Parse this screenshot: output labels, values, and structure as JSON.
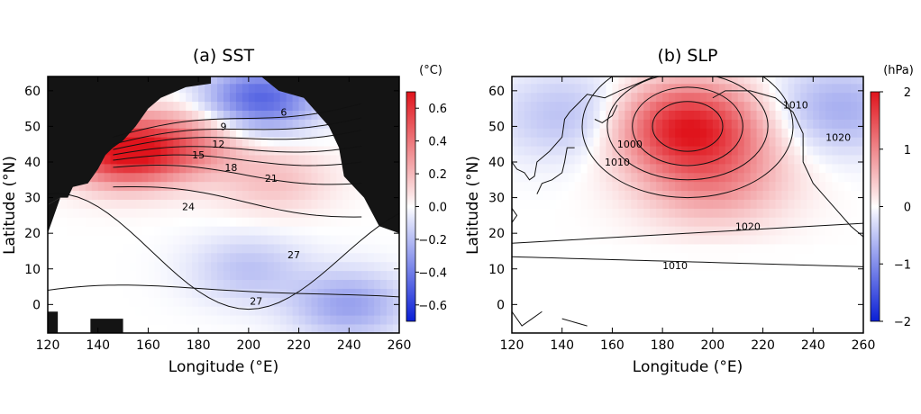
{
  "chart_data": [
    {
      "type": "heatmap",
      "title": "(a) SST",
      "xlabel": "Longitude (°E)",
      "ylabel": "Latitude (°N)",
      "xlim": [
        120,
        260
      ],
      "ylim": [
        -8,
        64
      ],
      "x_ticks": [
        "120",
        "140",
        "160",
        "180",
        "200",
        "220",
        "240",
        "260"
      ],
      "y_ticks": [
        "0",
        "10",
        "20",
        "30",
        "40",
        "50",
        "60"
      ],
      "colorbar": {
        "unit": "(°C)",
        "range": [
          -0.7,
          0.7
        ],
        "ticks": [
          "0.6",
          "0.4",
          "0.2",
          "0.0",
          "−0.2",
          "−0.4",
          "−0.6"
        ],
        "colors": {
          "negative": "#0a1fd6",
          "zero": "#ffffff",
          "positive": "#e0141c"
        }
      },
      "land_color": "#141414",
      "contour_labels": [
        "6",
        "9",
        "12",
        "15",
        "18",
        "21",
        "24",
        "27",
        "27"
      ],
      "anomaly_centers": [
        {
          "lon": 150,
          "lat": 43,
          "value": 0.7
        },
        {
          "lon": 175,
          "lat": 45,
          "value": 0.3
        },
        {
          "lon": 205,
          "lat": 58,
          "value": -0.45
        },
        {
          "lon": 200,
          "lat": 10,
          "value": -0.15
        },
        {
          "lon": 240,
          "lat": 0,
          "value": -0.25
        },
        {
          "lon": 210,
          "lat": 35,
          "value": 0.15
        }
      ]
    },
    {
      "type": "heatmap",
      "title": "(b) SLP",
      "xlabel": "Longitude (°E)",
      "ylabel": "Latitude (°N)",
      "xlim": [
        120,
        260
      ],
      "ylim": [
        -8,
        64
      ],
      "x_ticks": [
        "120",
        "140",
        "160",
        "180",
        "200",
        "220",
        "240",
        "260"
      ],
      "y_ticks": [
        "0",
        "10",
        "20",
        "30",
        "40",
        "50",
        "60"
      ],
      "colorbar": {
        "unit": "(hPa)",
        "range": [
          -2,
          2
        ],
        "ticks": [
          "2",
          "1",
          "0",
          "−1",
          "−2"
        ],
        "colors": {
          "negative": "#0a1fd6",
          "zero": "#ffffff",
          "positive": "#e0141c"
        }
      },
      "contour_labels": [
        "1000",
        "1010",
        "1010",
        "1020",
        "1020",
        "1010"
      ],
      "anomaly_centers": [
        {
          "lon": 190,
          "lat": 50,
          "value": 1.9
        },
        {
          "lon": 200,
          "lat": 35,
          "value": 0.8
        },
        {
          "lon": 250,
          "lat": 55,
          "value": -0.6
        },
        {
          "lon": 145,
          "lat": 53,
          "value": -0.5
        }
      ]
    }
  ]
}
